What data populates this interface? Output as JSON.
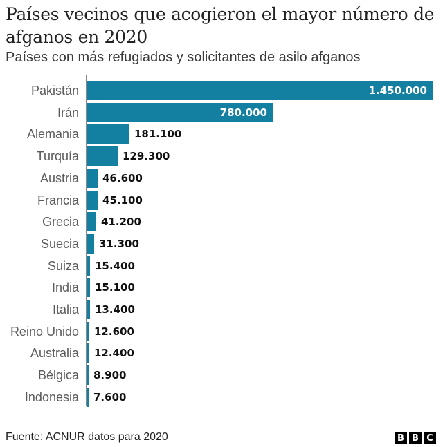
{
  "header": {
    "title": "Países vecinos que acogieron el mayor número de afganos en 2020",
    "subtitle": "Países con más refugiados y solicitantes de asilo afganos"
  },
  "footer": {
    "source": "Fuente: ACNUR datos para 2020",
    "logo": [
      "B",
      "B",
      "C"
    ]
  },
  "colors": {
    "bar": "#1380a1",
    "value_inside": "#ffffff",
    "value_outside": "#111111"
  },
  "chart_data": {
    "type": "bar",
    "orientation": "horizontal",
    "title": "Países vecinos que acogieron el mayor número de afganos en 2020",
    "subtitle": "Países con más refugiados y solicitantes de asilo afganos",
    "xlabel": "",
    "ylabel": "",
    "xlim": [
      0,
      1450000
    ],
    "grid": false,
    "legend": null,
    "categories": [
      "Pakistán",
      "Irán",
      "Alemania",
      "Turquía",
      "Austria",
      "Francia",
      "Grecia",
      "Suecia",
      "Suiza",
      "India",
      "Italia",
      "Reino Unido",
      "Australia",
      "Bélgica",
      "Indonesia"
    ],
    "values": [
      1450000,
      780000,
      181100,
      129300,
      46600,
      45100,
      41200,
      31300,
      15400,
      15100,
      13400,
      12600,
      12400,
      8900,
      7600
    ],
    "value_labels": [
      "1.450.000",
      "780.000",
      "181.100",
      "129.300",
      "46.600",
      "45.100",
      "41.200",
      "31.300",
      "15.400",
      "15.100",
      "13.400",
      "12.600",
      "12.400",
      "8.900",
      "7.600"
    ],
    "source": "Fuente: ACNUR datos para 2020"
  }
}
